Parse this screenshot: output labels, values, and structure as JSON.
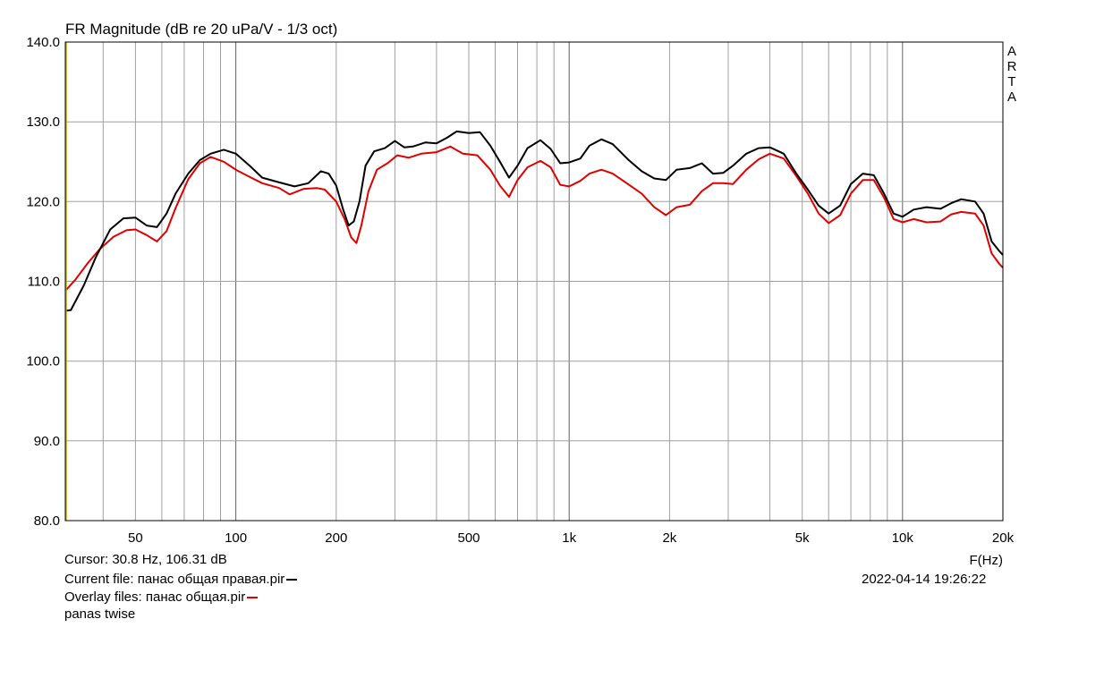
{
  "chart_data": {
    "type": "line",
    "title": "FR Magnitude (dB re 20 uPa/V - 1/3 oct)",
    "xlabel": "F(Hz)",
    "ylabel": "",
    "x_scale": "log",
    "xlim": [
      30.8,
      20000
    ],
    "ylim": [
      80,
      140
    ],
    "y_ticks": [
      "80.0",
      "90.0",
      "100.0",
      "110.0",
      "120.0",
      "130.0",
      "140.0"
    ],
    "y_tick_values": [
      80,
      90,
      100,
      110,
      120,
      130,
      140
    ],
    "x_ticks": [
      "50",
      "100",
      "200",
      "500",
      "1k",
      "2k",
      "5k",
      "10k",
      "20k"
    ],
    "x_tick_values": [
      50,
      100,
      200,
      500,
      1000,
      2000,
      5000,
      10000,
      20000
    ],
    "grid": true,
    "cursor_hz": 30.8,
    "series": [
      {
        "name": "панас общая правая.pir",
        "color": "#000000",
        "points": [
          [
            30.8,
            106.3
          ],
          [
            32,
            106.4
          ],
          [
            35,
            109.5
          ],
          [
            38,
            113
          ],
          [
            42,
            116.5
          ],
          [
            46,
            117.9
          ],
          [
            50,
            118
          ],
          [
            54,
            117
          ],
          [
            58,
            116.8
          ],
          [
            62,
            118.5
          ],
          [
            66,
            121
          ],
          [
            72,
            123.5
          ],
          [
            78,
            125.2
          ],
          [
            84,
            126
          ],
          [
            92,
            126.5
          ],
          [
            100,
            126
          ],
          [
            110,
            124.5
          ],
          [
            120,
            123
          ],
          [
            135,
            122.4
          ],
          [
            150,
            121.9
          ],
          [
            165,
            122.3
          ],
          [
            180,
            123.8
          ],
          [
            190,
            123.5
          ],
          [
            200,
            122
          ],
          [
            210,
            119
          ],
          [
            218,
            117
          ],
          [
            226,
            117.5
          ],
          [
            235,
            120
          ],
          [
            245,
            124.5
          ],
          [
            260,
            126.3
          ],
          [
            280,
            126.7
          ],
          [
            300,
            127.6
          ],
          [
            320,
            126.8
          ],
          [
            340,
            126.9
          ],
          [
            370,
            127.4
          ],
          [
            400,
            127.3
          ],
          [
            430,
            128
          ],
          [
            460,
            128.8
          ],
          [
            500,
            128.6
          ],
          [
            540,
            128.7
          ],
          [
            580,
            127
          ],
          [
            620,
            125
          ],
          [
            660,
            123
          ],
          [
            700,
            124.5
          ],
          [
            750,
            126.7
          ],
          [
            820,
            127.7
          ],
          [
            880,
            126.6
          ],
          [
            940,
            124.8
          ],
          [
            1000,
            124.9
          ],
          [
            1080,
            125.4
          ],
          [
            1150,
            127
          ],
          [
            1250,
            127.8
          ],
          [
            1350,
            127.2
          ],
          [
            1500,
            125.3
          ],
          [
            1650,
            123.8
          ],
          [
            1800,
            122.9
          ],
          [
            1950,
            122.7
          ],
          [
            2100,
            124
          ],
          [
            2300,
            124.2
          ],
          [
            2500,
            124.8
          ],
          [
            2700,
            123.5
          ],
          [
            2900,
            123.6
          ],
          [
            3100,
            124.5
          ],
          [
            3400,
            126
          ],
          [
            3700,
            126.7
          ],
          [
            4000,
            126.8
          ],
          [
            4400,
            126
          ],
          [
            4800,
            123.5
          ],
          [
            5200,
            121.5
          ],
          [
            5600,
            119.5
          ],
          [
            6000,
            118.5
          ],
          [
            6500,
            119.5
          ],
          [
            7000,
            122.2
          ],
          [
            7600,
            123.5
          ],
          [
            8200,
            123.3
          ],
          [
            8800,
            121
          ],
          [
            9400,
            118.5
          ],
          [
            10000,
            118.1
          ],
          [
            10800,
            119
          ],
          [
            11800,
            119.3
          ],
          [
            13000,
            119.1
          ],
          [
            14000,
            119.8
          ],
          [
            15000,
            120.3
          ],
          [
            16500,
            120
          ],
          [
            17500,
            118.5
          ],
          [
            18500,
            115
          ],
          [
            19500,
            113.8
          ],
          [
            20000,
            113.3
          ]
        ]
      },
      {
        "name": "панас общая.pir",
        "color": "#e00000",
        "points": [
          [
            30.8,
            108.8
          ],
          [
            33,
            110.2
          ],
          [
            36,
            112.3
          ],
          [
            39,
            114
          ],
          [
            43,
            115.6
          ],
          [
            47,
            116.4
          ],
          [
            50,
            116.5
          ],
          [
            54,
            115.8
          ],
          [
            58,
            115
          ],
          [
            62,
            116.3
          ],
          [
            66,
            119.2
          ],
          [
            72,
            122.8
          ],
          [
            78,
            124.8
          ],
          [
            84,
            125.6
          ],
          [
            92,
            125
          ],
          [
            100,
            124
          ],
          [
            110,
            123.1
          ],
          [
            120,
            122.3
          ],
          [
            135,
            121.7
          ],
          [
            145,
            120.9
          ],
          [
            160,
            121.6
          ],
          [
            175,
            121.7
          ],
          [
            185,
            121.5
          ],
          [
            200,
            120
          ],
          [
            212,
            117.8
          ],
          [
            222,
            115.5
          ],
          [
            230,
            114.8
          ],
          [
            238,
            117
          ],
          [
            250,
            121.3
          ],
          [
            265,
            124
          ],
          [
            285,
            124.8
          ],
          [
            305,
            125.8
          ],
          [
            330,
            125.5
          ],
          [
            360,
            126
          ],
          [
            400,
            126.2
          ],
          [
            440,
            126.9
          ],
          [
            480,
            126
          ],
          [
            530,
            125.8
          ],
          [
            580,
            124
          ],
          [
            620,
            122
          ],
          [
            660,
            120.6
          ],
          [
            700,
            122.7
          ],
          [
            750,
            124.3
          ],
          [
            820,
            125.1
          ],
          [
            880,
            124.3
          ],
          [
            940,
            122.1
          ],
          [
            1000,
            121.9
          ],
          [
            1080,
            122.6
          ],
          [
            1150,
            123.5
          ],
          [
            1250,
            124
          ],
          [
            1350,
            123.5
          ],
          [
            1500,
            122.2
          ],
          [
            1650,
            121
          ],
          [
            1800,
            119.3
          ],
          [
            1950,
            118.3
          ],
          [
            2100,
            119.3
          ],
          [
            2300,
            119.6
          ],
          [
            2500,
            121.3
          ],
          [
            2700,
            122.3
          ],
          [
            2900,
            122.3
          ],
          [
            3100,
            122.2
          ],
          [
            3400,
            124
          ],
          [
            3700,
            125.3
          ],
          [
            4000,
            126
          ],
          [
            4400,
            125.4
          ],
          [
            4800,
            123.2
          ],
          [
            5200,
            121
          ],
          [
            5600,
            118.5
          ],
          [
            6000,
            117.3
          ],
          [
            6500,
            118.3
          ],
          [
            7000,
            121
          ],
          [
            7600,
            122.7
          ],
          [
            8200,
            122.7
          ],
          [
            8800,
            120.5
          ],
          [
            9400,
            117.8
          ],
          [
            10000,
            117.4
          ],
          [
            10800,
            117.8
          ],
          [
            11800,
            117.4
          ],
          [
            13000,
            117.5
          ],
          [
            14000,
            118.4
          ],
          [
            15000,
            118.7
          ],
          [
            16500,
            118.5
          ],
          [
            17500,
            117
          ],
          [
            18500,
            113.5
          ],
          [
            19500,
            112.2
          ],
          [
            20000,
            111.7
          ]
        ]
      }
    ]
  },
  "watermark": [
    "A",
    "R",
    "T",
    "A"
  ],
  "info": {
    "cursor_text": "Cursor: 30.8 Hz, 106.31 dB",
    "current_file_text": "Current file: панас общая правая.pir",
    "overlay_files_text": "Overlay files: панас общая.pir",
    "comment": "panas twise",
    "date_time": "2022-04-14  19:26:22"
  },
  "colors": {
    "grid": "#a0a0a0",
    "axis": "#000000",
    "cursor": "#b8b000"
  }
}
